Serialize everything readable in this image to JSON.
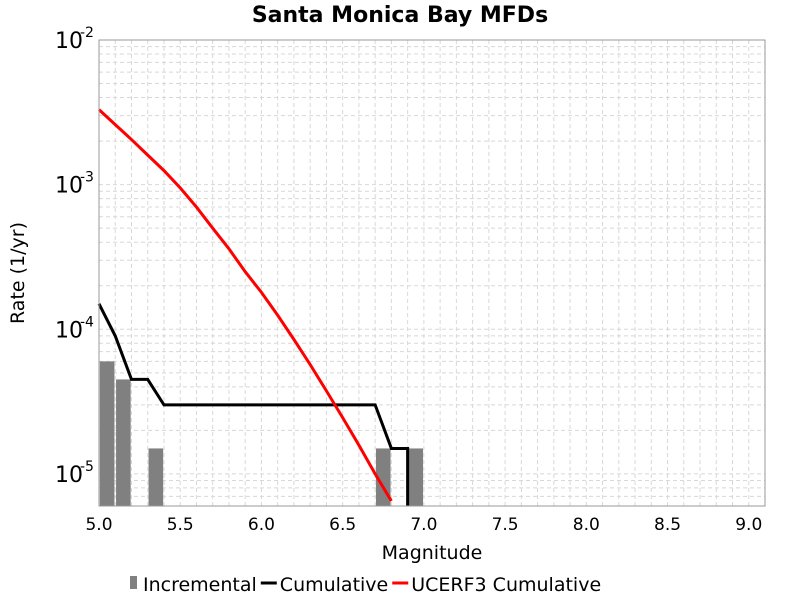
{
  "chart_data": {
    "type": "bar+line",
    "title": "Santa Monica Bay MFDs",
    "xlabel": "Magnitude",
    "ylabel": "Rate (1/yr)",
    "xlim": [
      5.0,
      9.1
    ],
    "ylim": [
      6e-06,
      0.01
    ],
    "y_scale": "log",
    "grid": true,
    "legend_position": "bottom",
    "x_ticks": [
      "5.0",
      "5.5",
      "6.0",
      "6.5",
      "7.0",
      "7.5",
      "8.0",
      "8.5",
      "9.0"
    ],
    "x_tick_values": [
      5.0,
      5.5,
      6.0,
      6.5,
      7.0,
      7.5,
      8.0,
      8.5,
      9.0
    ],
    "y_ticks": [
      {
        "value": 1e-05,
        "base": "10",
        "exp": "-5"
      },
      {
        "value": 0.0001,
        "base": "10",
        "exp": "-4"
      },
      {
        "value": 0.001,
        "base": "10",
        "exp": "-3"
      },
      {
        "value": 0.01,
        "base": "10",
        "exp": "-2"
      }
    ],
    "series": [
      {
        "name": "Incremental",
        "kind": "bar",
        "color": "#808080",
        "bar_width": 0.09,
        "x": [
          5.05,
          5.15,
          5.35,
          6.75,
          6.95
        ],
        "y": [
          6e-05,
          4.5e-05,
          1.5e-05,
          1.5e-05,
          1.5e-05
        ]
      },
      {
        "name": "Cumulative",
        "kind": "line",
        "color": "#000000",
        "x": [
          5.0,
          5.1,
          5.2,
          5.3,
          5.4,
          5.5,
          5.6,
          5.7,
          5.8,
          5.9,
          6.0,
          6.1,
          6.2,
          6.3,
          6.4,
          6.5,
          6.6,
          6.7,
          6.8,
          6.9,
          6.9
        ],
        "y": [
          0.00015,
          9e-05,
          4.5e-05,
          4.5e-05,
          3e-05,
          3e-05,
          3e-05,
          3e-05,
          3e-05,
          3e-05,
          3e-05,
          3e-05,
          3e-05,
          3e-05,
          3e-05,
          3e-05,
          3e-05,
          3e-05,
          1.5e-05,
          1.5e-05,
          6e-06
        ]
      },
      {
        "name": "UCERF3 Cumulative",
        "kind": "line",
        "color": "#ff0000",
        "x": [
          5.0,
          5.1,
          5.2,
          5.3,
          5.4,
          5.5,
          5.6,
          5.7,
          5.8,
          5.9,
          6.0,
          6.1,
          6.2,
          6.3,
          6.4,
          6.5,
          6.6,
          6.7,
          6.8
        ],
        "y": [
          0.0033,
          0.0026,
          0.00205,
          0.0016,
          0.00125,
          0.00095,
          0.0007,
          0.0005,
          0.00036,
          0.00025,
          0.00018,
          0.000125,
          8.5e-05,
          5.7e-05,
          3.75e-05,
          2.45e-05,
          1.58e-05,
          1e-05,
          6.5e-06
        ]
      }
    ]
  }
}
